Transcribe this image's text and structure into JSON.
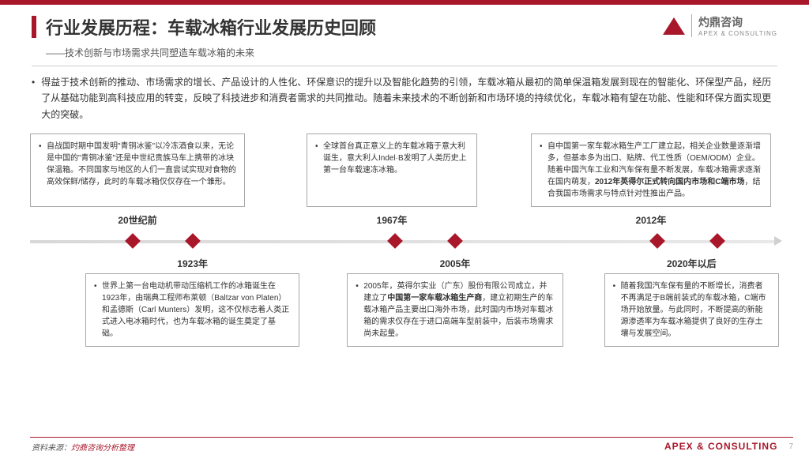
{
  "header": {
    "title": "行业发展历程：车载冰箱行业发展历史回顾",
    "subtitle": "——技术创新与市场需求共同塑造车载冰箱的未来",
    "logo_cn": "灼鼎咨询",
    "logo_en": "APEX & CONSULTING"
  },
  "intro": "得益于技术创新的推动、市场需求的增长、产品设计的人性化、环保意识的提升以及智能化趋势的引领，车载冰箱从最初的简单保温箱发展到现在的智能化、环保型产品，经历了从基础功能到高科技应用的转变，反映了科技进步和消费者需求的共同推动。随着未来技术的不断创新和市场环境的持续优化，车载冰箱有望在功能、性能和环保方面实现更大的突破。",
  "timeline": {
    "top_boxes": [
      {
        "year": "20世纪前",
        "text": "自战国时期中国发明\"青铜冰鉴\"以冷冻酒食以来，无论是中国的\"青铜冰鉴\"还是中世纪贵族马车上携带的冰块保温箱。不同国家与地区的人们一直尝试实现对食物的高效保鲜/储存，此时的车载冰箱仅仅存在一个雏形。"
      },
      {
        "year": "1967年",
        "text": "全球首台真正意义上的车载冰箱于意大利诞生，意大利人Indel·B发明了人类历史上第一台车载速冻冰箱。"
      },
      {
        "year": "2012年",
        "text_prefix": "自中国第一家车载冰箱生产工厂建立起，相关企业数量逐渐增多，但基本多为出口、贴牌、代工性质（OEM/ODM）企业。随着中国汽车工业和汽车保有量不断发展，车载冰箱需求逐渐在国内萌发，",
        "text_bold": "2012年英得尔正式转向国内市场和C端市场",
        "text_suffix": "，结合我国市场需求与特点针对性推出产品。"
      }
    ],
    "bottom_boxes": [
      {
        "year": "1923年",
        "text": "世界上第一台电动机带动压缩机工作的冰箱诞生在1923年，由瑞典工程师布莱顿（Baltzar von Platen）和孟德斯（Carl Munters）发明，这不仅标志着人类正式进入电冰箱时代，也为车载冰箱的诞生奠定了基础。"
      },
      {
        "year": "2005年",
        "text_prefix": "2005年，英得尔实业（广东）股份有限公司成立，并建立了",
        "text_bold": "中国第一家车载冰箱生产商",
        "text_suffix": "，建立初期生产的车载冰箱产品主要出口海外市场，此时国内市场对车载冰箱的需求仅存在于进口高端车型前装中，后装市场需求尚未起量。"
      },
      {
        "year": "2020年以后",
        "text": "随着我国汽车保有量的不断增长，消费者不再满足于B端前装式的车载冰箱，C端市场开始放量。与此同时，不断提高的新能源渗透率为车载冰箱提供了良好的生存土壤与发展空间。"
      }
    ],
    "diamond_positions_pct": [
      13,
      21,
      48,
      56,
      83,
      91
    ]
  },
  "footer": {
    "source_label": "资料来源：",
    "source_value": "灼鼎咨询分析整理",
    "brand": "APEX & CONSULTING",
    "page": "7"
  },
  "colors": {
    "accent": "#a8172a",
    "text": "#333333",
    "border": "#a8a8a8"
  }
}
